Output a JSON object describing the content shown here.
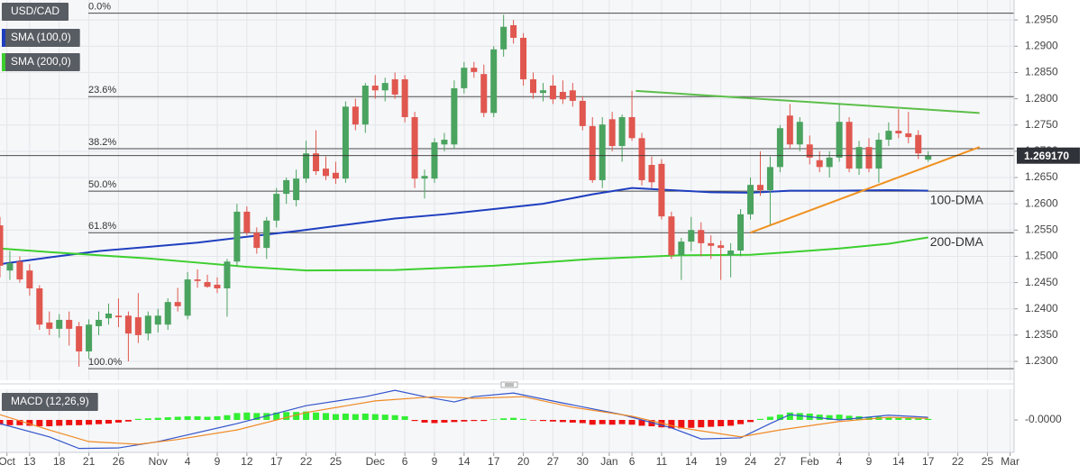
{
  "chart_data": {
    "type": "candlestick",
    "name": "USD/CAD",
    "colors": {
      "up": "#4aa35f",
      "down": "#e0574f"
    },
    "ohlc": [
      [
        1.2559,
        1.2575,
        1.246,
        1.2482
      ],
      [
        1.2473,
        1.251,
        1.2455,
        1.2487
      ],
      [
        1.249,
        1.25,
        1.245,
        1.2456
      ],
      [
        1.2473,
        1.2485,
        1.2425,
        1.2439
      ],
      [
        1.2439,
        1.2445,
        1.236,
        1.237
      ],
      [
        1.2374,
        1.2395,
        1.235,
        1.2362
      ],
      [
        1.2362,
        1.239,
        1.2345,
        1.2379
      ],
      [
        1.2379,
        1.2395,
        1.233,
        1.2362
      ],
      [
        1.2367,
        1.2375,
        1.229,
        1.2319
      ],
      [
        1.2319,
        1.238,
        1.2305,
        1.237
      ],
      [
        1.2367,
        1.2395,
        1.235,
        1.2379
      ],
      [
        1.2382,
        1.241,
        1.237,
        1.2391
      ],
      [
        1.2387,
        1.242,
        1.2365,
        1.2384
      ],
      [
        1.2387,
        1.2395,
        1.23,
        1.2353
      ],
      [
        1.2384,
        1.243,
        1.2335,
        1.235
      ],
      [
        1.2353,
        1.2395,
        1.234,
        1.2387
      ],
      [
        1.237,
        1.24,
        1.2355,
        1.2387
      ],
      [
        1.237,
        1.242,
        1.236,
        1.2413
      ],
      [
        1.2413,
        1.244,
        1.2395,
        1.2405
      ],
      [
        1.2387,
        1.247,
        1.238,
        1.2456
      ],
      [
        1.2456,
        1.2475,
        1.244,
        1.2453
      ],
      [
        1.2451,
        1.2465,
        1.244,
        1.2442
      ],
      [
        1.2446,
        1.246,
        1.243,
        1.2439
      ],
      [
        1.2439,
        1.2495,
        1.2385,
        1.249
      ],
      [
        1.249,
        1.26,
        1.248,
        1.2585
      ],
      [
        1.2585,
        1.2595,
        1.254,
        1.2545
      ],
      [
        1.2545,
        1.2555,
        1.2505,
        1.2516
      ],
      [
        1.2516,
        1.2575,
        1.2495,
        1.2568
      ],
      [
        1.2568,
        1.263,
        1.2555,
        1.2619
      ],
      [
        1.2619,
        1.265,
        1.26,
        1.2645
      ],
      [
        1.2607,
        1.2665,
        1.2595,
        1.2648
      ],
      [
        1.2648,
        1.272,
        1.264,
        1.2696
      ],
      [
        1.2696,
        1.274,
        1.2655,
        1.2662
      ],
      [
        1.2667,
        1.269,
        1.2645,
        1.2653
      ],
      [
        1.2659,
        1.268,
        1.2638,
        1.2648
      ],
      [
        1.2648,
        1.2795,
        1.264,
        1.2785
      ],
      [
        1.2785,
        1.28,
        1.274,
        1.2751
      ],
      [
        1.2751,
        1.283,
        1.2735,
        1.2825
      ],
      [
        1.2825,
        1.2845,
        1.28,
        1.2816
      ],
      [
        1.2816,
        1.284,
        1.2795,
        1.283
      ],
      [
        1.2837,
        1.285,
        1.28,
        1.2808
      ],
      [
        1.2837,
        1.2845,
        1.2755,
        1.2765
      ],
      [
        1.2765,
        1.2775,
        1.263,
        1.2648
      ],
      [
        1.2648,
        1.2665,
        1.261,
        1.2653
      ],
      [
        1.2648,
        1.2725,
        1.264,
        1.2717
      ],
      [
        1.2713,
        1.2735,
        1.27,
        1.2722
      ],
      [
        1.2713,
        1.2835,
        1.2705,
        1.282
      ],
      [
        1.282,
        1.287,
        1.281,
        1.2859
      ],
      [
        1.2859,
        1.287,
        1.284,
        1.2851
      ],
      [
        1.2847,
        1.2865,
        1.2765,
        1.2773
      ],
      [
        1.2773,
        1.29,
        1.2765,
        1.2894
      ],
      [
        1.2894,
        1.296,
        1.288,
        1.2937
      ],
      [
        1.294,
        1.295,
        1.2905,
        1.2916
      ],
      [
        1.2916,
        1.2925,
        1.2825,
        1.2837
      ],
      [
        1.2837,
        1.285,
        1.28,
        1.2811
      ],
      [
        1.2811,
        1.283,
        1.2795,
        1.2816
      ],
      [
        1.2825,
        1.2845,
        1.279,
        1.2799
      ],
      [
        1.2813,
        1.2835,
        1.279,
        1.2799
      ],
      [
        1.2816,
        1.283,
        1.2785,
        1.2796
      ],
      [
        1.2796,
        1.2805,
        1.274,
        1.2748
      ],
      [
        1.2748,
        1.2765,
        1.264,
        1.2645
      ],
      [
        1.2645,
        1.2765,
        1.263,
        1.2751
      ],
      [
        1.2761,
        1.2775,
        1.27,
        1.271
      ],
      [
        1.271,
        1.277,
        1.268,
        1.2765
      ],
      [
        1.2765,
        1.2815,
        1.272,
        1.2725
      ],
      [
        1.2725,
        1.2735,
        1.2635,
        1.2645
      ],
      [
        1.2674,
        1.269,
        1.263,
        1.2641
      ],
      [
        1.2676,
        1.2685,
        1.257,
        1.2576
      ],
      [
        1.2576,
        1.2585,
        1.2495,
        1.2502
      ],
      [
        1.2502,
        1.2535,
        1.2455,
        1.2528
      ],
      [
        1.2528,
        1.2575,
        1.251,
        1.255
      ],
      [
        1.255,
        1.2565,
        1.25,
        1.2525
      ],
      [
        1.2525,
        1.254,
        1.2495,
        1.252
      ],
      [
        1.2521,
        1.253,
        1.2455,
        1.2516
      ],
      [
        1.2502,
        1.2525,
        1.246,
        1.2511
      ],
      [
        1.2511,
        1.259,
        1.25,
        1.258
      ],
      [
        1.258,
        1.265,
        1.257,
        1.2636
      ],
      [
        1.2636,
        1.27,
        1.2615,
        1.2626
      ],
      [
        1.2626,
        1.269,
        1.256,
        1.267
      ],
      [
        1.267,
        1.275,
        1.266,
        1.2744
      ],
      [
        1.2768,
        1.279,
        1.2705,
        1.2713
      ],
      [
        1.2713,
        1.2765,
        1.27,
        1.2756
      ],
      [
        1.2713,
        1.273,
        1.2675,
        1.2688
      ],
      [
        1.2683,
        1.27,
        1.266,
        1.267
      ],
      [
        1.267,
        1.27,
        1.265,
        1.2688
      ],
      [
        1.2688,
        1.279,
        1.268,
        1.2756
      ],
      [
        1.2756,
        1.2765,
        1.266,
        1.2667
      ],
      [
        1.2667,
        1.272,
        1.2655,
        1.2708
      ],
      [
        1.2708,
        1.2725,
        1.266,
        1.2667
      ],
      [
        1.2667,
        1.2735,
        1.264,
        1.2722
      ],
      [
        1.2722,
        1.2755,
        1.271,
        1.2739
      ],
      [
        1.2739,
        1.278,
        1.2725,
        1.2734
      ],
      [
        1.2734,
        1.2775,
        1.2715,
        1.2727
      ],
      [
        1.2731,
        1.274,
        1.2685,
        1.2696
      ],
      [
        1.2684,
        1.27,
        1.268,
        1.26917
      ]
    ],
    "xlim": [
      0,
      102.7
    ],
    "xticks": [
      {
        "value": 0.7,
        "label": "Oct"
      },
      {
        "value": 3,
        "label": "13"
      },
      {
        "value": 6,
        "label": "18"
      },
      {
        "value": 9,
        "label": "21"
      },
      {
        "value": 12,
        "label": "26"
      },
      {
        "value": 16,
        "label": "Nov"
      },
      {
        "value": 19,
        "label": "4"
      },
      {
        "value": 22,
        "label": "9"
      },
      {
        "value": 25,
        "label": "12"
      },
      {
        "value": 28,
        "label": "17"
      },
      {
        "value": 31,
        "label": "22"
      },
      {
        "value": 34,
        "label": "25"
      },
      {
        "value": 38,
        "label": "Dec"
      },
      {
        "value": 41,
        "label": "6"
      },
      {
        "value": 44,
        "label": "9"
      },
      {
        "value": 47,
        "label": "14"
      },
      {
        "value": 50,
        "label": "17"
      },
      {
        "value": 53,
        "label": "20"
      },
      {
        "value": 56,
        "label": "27"
      },
      {
        "value": 59,
        "label": "30"
      },
      {
        "value": 61.7,
        "label": "Jan"
      },
      {
        "value": 64,
        "label": "6"
      },
      {
        "value": 67,
        "label": "11"
      },
      {
        "value": 70,
        "label": "14"
      },
      {
        "value": 73,
        "label": "19"
      },
      {
        "value": 76,
        "label": "24"
      },
      {
        "value": 79,
        "label": "27"
      },
      {
        "value": 82,
        "label": "Feb"
      },
      {
        "value": 85,
        "label": "4"
      },
      {
        "value": 88,
        "label": "9"
      },
      {
        "value": 91,
        "label": "14"
      },
      {
        "value": 94,
        "label": "17"
      },
      {
        "value": 97,
        "label": "22"
      },
      {
        "value": 100,
        "label": "25"
      },
      {
        "value": 102.3,
        "label": "Mar"
      }
    ],
    "ylim": [
      1.2264,
      1.2988
    ],
    "yticks": [
      {
        "value": 1.23,
        "label": "1.2300"
      },
      {
        "value": 1.235,
        "label": "1.2350"
      },
      {
        "value": 1.24,
        "label": "1.2400"
      },
      {
        "value": 1.245,
        "label": "1.2450"
      },
      {
        "value": 1.25,
        "label": "1.2500"
      },
      {
        "value": 1.255,
        "label": "1.2550"
      },
      {
        "value": 1.26,
        "label": "1.2600"
      },
      {
        "value": 1.265,
        "label": "1.2650"
      },
      {
        "value": 1.27,
        "label": "1.2700"
      },
      {
        "value": 1.275,
        "label": "1.2750"
      },
      {
        "value": 1.28,
        "label": "1.2800"
      },
      {
        "value": 1.285,
        "label": "1.2850"
      },
      {
        "value": 1.29,
        "label": "1.2900"
      },
      {
        "value": 1.295,
        "label": "1.2950"
      }
    ],
    "grid": true,
    "last_price": {
      "value": 1.26917,
      "label": "1.269170"
    },
    "series": [
      {
        "name": "SMA (100,0)",
        "color": "#1f3fbf",
        "annotation": "100-DMA",
        "annotation_color": "#7b62d0",
        "x": [
          0,
          5,
          10,
          15,
          20,
          24,
          30,
          35,
          40,
          45,
          50,
          55,
          60,
          64,
          68,
          72,
          76,
          80,
          85,
          90,
          94
        ],
        "values": [
          1.2485,
          1.2498,
          1.251,
          1.2518,
          1.2526,
          1.2535,
          1.2548,
          1.256,
          1.2572,
          1.258,
          1.259,
          1.26,
          1.2618,
          1.263,
          1.2626,
          1.2622,
          1.2621,
          1.2625,
          1.2625,
          1.2626,
          1.2625
        ]
      },
      {
        "name": "SMA (200,0)",
        "color": "#3ccf2e",
        "annotation": "200-DMA",
        "annotation_color": "#2fc52f",
        "x": [
          0,
          5,
          10,
          15,
          20,
          25,
          31,
          40,
          50,
          60,
          69,
          76,
          80,
          85,
          90,
          94
        ],
        "values": [
          1.2515,
          1.2508,
          1.2502,
          1.2496,
          1.2488,
          1.248,
          1.2473,
          1.2474,
          1.2482,
          1.2495,
          1.2502,
          1.2503,
          1.2508,
          1.2515,
          1.2524,
          1.2536
        ]
      }
    ],
    "fib_levels": [
      {
        "label": "0.0%",
        "value": 1.2963
      },
      {
        "label": "23.6%",
        "value": 1.2804
      },
      {
        "label": "38.2%",
        "value": 1.2705
      },
      {
        "label": "50.0%",
        "value": 1.2624
      },
      {
        "label": "61.8%",
        "value": 1.2545
      },
      {
        "label": "100.0%",
        "value": 1.2286
      }
    ],
    "trendlines": [
      {
        "color": "#5cbf4a",
        "x": [
          64.4,
          99.2
        ],
        "values": [
          1.2815,
          1.2773
        ]
      },
      {
        "color": "#f0901e",
        "x": [
          76,
          99.2
        ],
        "values": [
          1.2545,
          1.2708
        ]
      }
    ],
    "macd": {
      "title": "MACD (12,26,9)",
      "ylim": [
        -0.0058,
        0.0058
      ],
      "yticks": [
        {
          "value": 0,
          "label": "-0.0000"
        }
      ],
      "colors": {
        "up": "#33ee33",
        "down": "#ee1111"
      },
      "histogram": [
        -0.0009,
        -0.001,
        -0.001,
        -0.0011,
        -0.0012,
        -0.0012,
        -0.0011,
        -0.001,
        -0.001,
        -0.0009,
        -0.0008,
        -0.0007,
        -0.0005,
        -0.0003,
        0.0002,
        0.0003,
        0.0004,
        0.0005,
        0.0006,
        0.0007,
        0.0007,
        0.0006,
        0.0007,
        0.0009,
        0.0013,
        0.0014,
        0.0013,
        0.0013,
        0.0014,
        0.0015,
        0.0015,
        0.0016,
        0.0014,
        0.0013,
        0.0011,
        0.0012,
        0.0011,
        0.0012,
        0.0011,
        0.001,
        0.0009,
        0.0007,
        -0.0002,
        -0.0005,
        -0.0006,
        -0.0005,
        -0.0004,
        -0.0003,
        -0.0002,
        -0.0002,
        0.0001,
        0.0003,
        0.0004,
        0.0002,
        -0.0001,
        -0.0002,
        -0.0003,
        -0.0004,
        -0.0005,
        -0.0006,
        -0.0009,
        -0.0008,
        -0.0009,
        -0.0008,
        -0.0009,
        -0.0011,
        -0.0012,
        -0.0014,
        -0.0016,
        -0.0016,
        -0.0015,
        -0.0014,
        -0.0013,
        -0.0012,
        -0.0011,
        -0.0008,
        -0.0004,
        0.0002,
        0.0006,
        0.001,
        0.0014,
        0.0013,
        0.0012,
        0.001,
        0.0009,
        0.001,
        0.0008,
        0.0007,
        0.0006,
        0.0006,
        0.0005,
        0.0005,
        0.0004,
        0.0004,
        0.0002
      ],
      "series": [
        {
          "color": "#3355cc",
          "x": [
            0,
            5,
            8,
            12,
            16,
            24,
            31,
            37,
            40,
            43,
            46,
            48,
            52,
            57,
            63,
            68,
            71,
            75,
            78,
            80,
            85,
            90,
            94
          ],
          "values": [
            -0.0007,
            -0.0032,
            -0.0054,
            -0.0053,
            -0.0041,
            -0.0007,
            0.0027,
            0.0044,
            0.0056,
            0.0044,
            0.0034,
            0.0044,
            0.0051,
            0.0032,
            0.001,
            -0.0015,
            -0.0036,
            -0.0034,
            -0.0007,
            0.001,
            0.0,
            0.0009,
            0.0005
          ]
        },
        {
          "color": "#f08a24",
          "x": [
            0,
            5,
            9,
            14,
            18,
            24,
            31,
            38,
            44,
            48,
            53,
            58,
            64,
            69,
            75,
            79,
            85,
            90,
            94
          ],
          "values": [
            0.001,
            -0.0019,
            -0.0041,
            -0.0046,
            -0.0037,
            -0.0019,
            0.0014,
            0.0036,
            0.0044,
            0.0041,
            0.0044,
            0.0024,
            0.0007,
            -0.0015,
            -0.0032,
            -0.0019,
            -0.0003,
            0.0005,
            0.0003
          ]
        }
      ]
    }
  }
}
